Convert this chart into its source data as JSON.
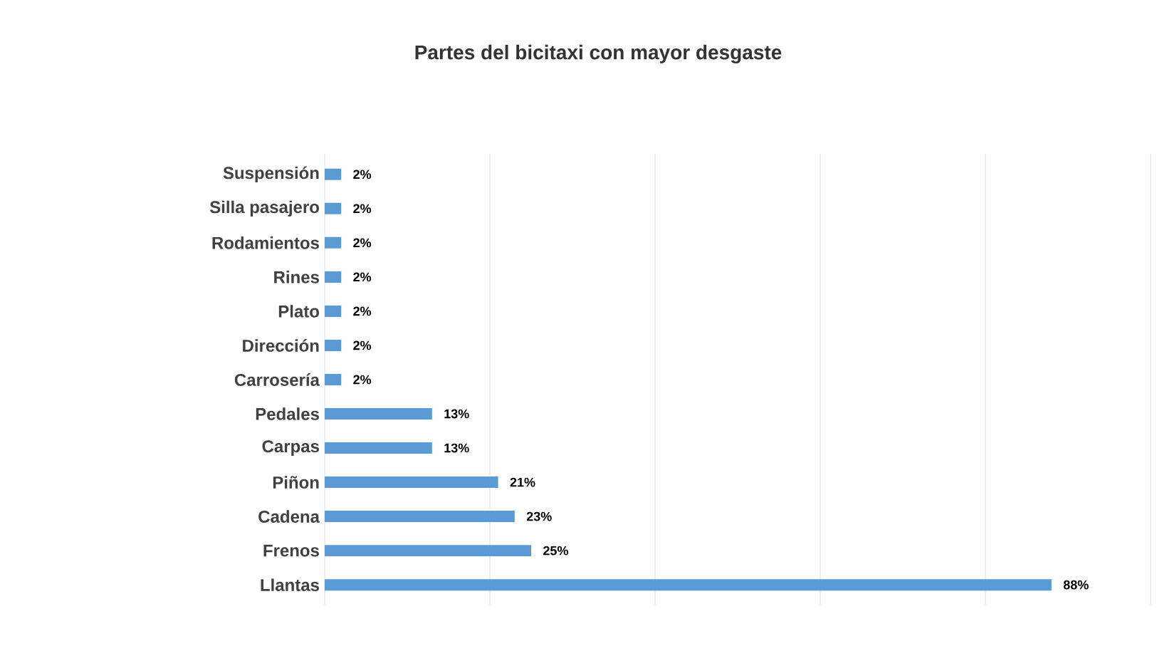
{
  "chart_data": {
    "type": "bar",
    "orientation": "horizontal",
    "title": "Partes del bicitaxi con mayor desgaste",
    "categories": [
      "Suspensión",
      "Silla pasajero",
      "Rodamientos",
      "Rines",
      "Plato",
      "Dirección",
      "Carrosería",
      "Pedales",
      "Carpas",
      "Piñon",
      "Cadena",
      "Frenos",
      "Llantas"
    ],
    "values": [
      2,
      2,
      2,
      2,
      2,
      2,
      2,
      13,
      13,
      21,
      23,
      25,
      88
    ],
    "value_labels": [
      "2%",
      "2%",
      "2%",
      "2%",
      "2%",
      "2%",
      "2%",
      "13%",
      "13%",
      "21%",
      "23%",
      "25%",
      "88%"
    ],
    "color": "#5b9bd5",
    "xlim": [
      0,
      100
    ],
    "xticks": [
      {
        "value": 0,
        "label": null
      },
      {
        "value": 20,
        "label": null
      },
      {
        "value": 40,
        "label": null
      },
      {
        "value": 60,
        "label": null
      },
      {
        "value": 80,
        "label": null
      },
      {
        "value": 100,
        "label": null
      }
    ],
    "tick_labels": "y",
    "grid": "x"
  }
}
